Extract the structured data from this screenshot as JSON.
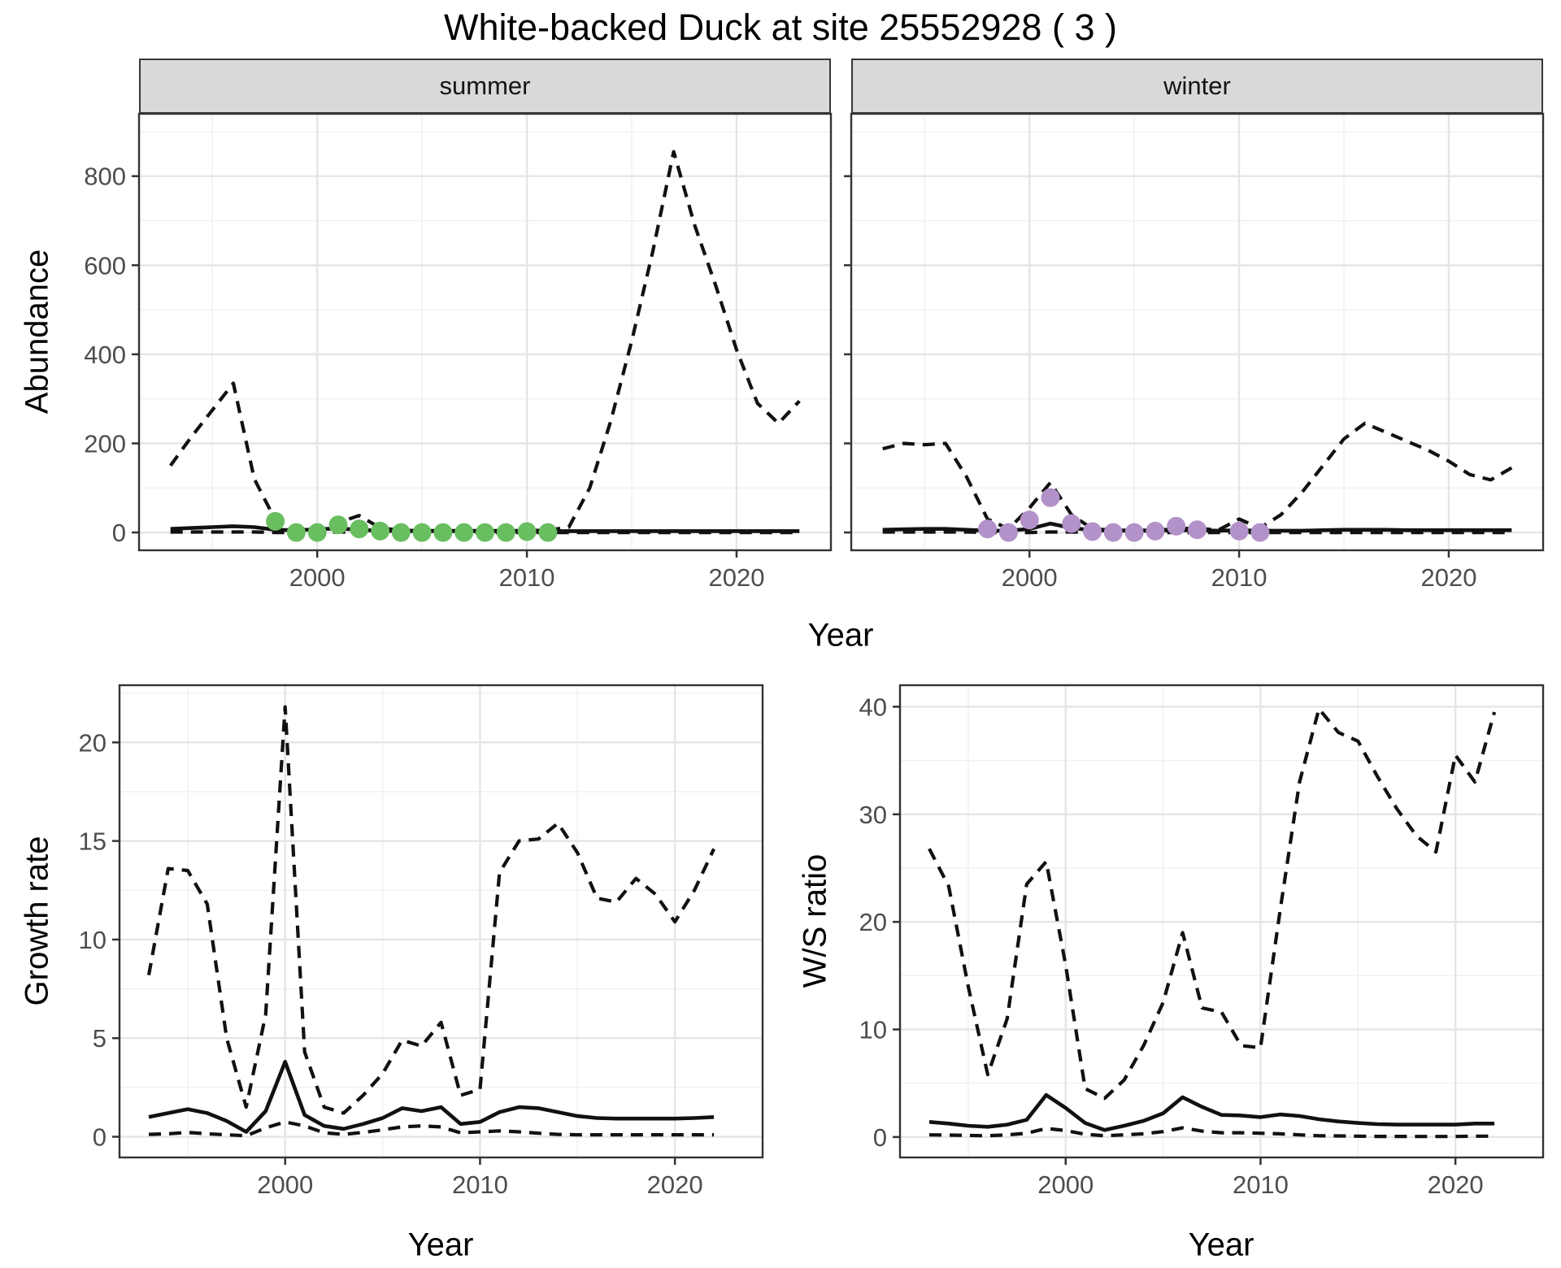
{
  "title": "White-backed Duck at site 25552928 ( 3 )",
  "facets": [
    {
      "label": "summer"
    },
    {
      "label": "winter"
    }
  ],
  "axis_titles": {
    "abundance": "Abundance",
    "year_top": "Year",
    "growth": "Growth rate",
    "ws": "W/S ratio",
    "year_growth": "Year",
    "year_ws": "Year"
  },
  "colors": {
    "summer_dot": "#69be5f",
    "winter_dot": "#b292c9",
    "line": "#111111",
    "strip_bg": "#d9d9d9",
    "panel_border": "#333333",
    "grid_major": "#e5e5e5",
    "grid_minor": "#f0f0f0",
    "tick_text": "#4d4d4d"
  },
  "chart_data": [
    {
      "type": "line",
      "facet": "summer",
      "xlabel": "Year",
      "ylabel": "Abundance",
      "xlim": [
        1991.5,
        2024.5
      ],
      "ylim": [
        -40,
        940
      ],
      "xticks": [
        2000,
        2010,
        2020
      ],
      "yticks": [
        0,
        200,
        400,
        600,
        800
      ],
      "xticks_minor": [
        1995,
        2005,
        2015
      ],
      "yticks_minor": [
        100,
        300,
        500,
        700,
        900
      ],
      "x": [
        1993,
        1994,
        1995,
        1996,
        1997,
        1998,
        1999,
        2000,
        2001,
        2002,
        2003,
        2004,
        2005,
        2006,
        2007,
        2008,
        2009,
        2010,
        2011,
        2012,
        2013,
        2014,
        2015,
        2016,
        2017,
        2018,
        2019,
        2020,
        2021,
        2022,
        2023
      ],
      "series": [
        {
          "name": "ci_upper",
          "style": "dashed",
          "values": [
            150,
            215,
            275,
            335,
            120,
            28,
            6,
            8,
            22,
            38,
            10,
            5,
            4,
            4,
            4,
            4,
            4,
            4,
            5,
            12,
            100,
            250,
            430,
            630,
            855,
            690,
            555,
            410,
            290,
            245,
            295
          ]
        },
        {
          "name": "mean",
          "style": "solid",
          "values": [
            8,
            10,
            12,
            14,
            12,
            6,
            5,
            7,
            9,
            6,
            4,
            3,
            3,
            3,
            3,
            3,
            3,
            3,
            3,
            3,
            3,
            3,
            3,
            3,
            3,
            3,
            3,
            3,
            3,
            3,
            3
          ]
        },
        {
          "name": "ci_lower",
          "style": "dashed",
          "values": [
            1,
            1,
            1,
            1,
            1,
            0,
            0,
            0,
            1,
            1,
            0,
            0,
            0,
            0,
            0,
            0,
            0,
            0,
            0,
            0,
            0,
            0,
            0,
            0,
            0,
            0,
            0,
            0,
            0,
            0,
            0
          ]
        }
      ],
      "points": {
        "name": "observed-counts-summer",
        "color": "#69be5f",
        "x": [
          1998,
          1999,
          2000,
          2001,
          2002,
          2003,
          2004,
          2005,
          2006,
          2007,
          2008,
          2009,
          2010,
          2011
        ],
        "y": [
          25,
          0,
          0,
          17,
          8,
          3,
          0,
          0,
          0,
          0,
          0,
          0,
          2,
          0
        ]
      }
    },
    {
      "type": "line",
      "facet": "winter",
      "xlabel": "Year",
      "ylabel": "Abundance",
      "xlim": [
        1991.5,
        2024.5
      ],
      "ylim": [
        -40,
        940
      ],
      "xticks": [
        2000,
        2010,
        2020
      ],
      "yticks": [
        0,
        200,
        400,
        600,
        800
      ],
      "xticks_minor": [
        1995,
        2005,
        2015
      ],
      "yticks_minor": [
        100,
        300,
        500,
        700,
        900
      ],
      "x": [
        1993,
        1994,
        1995,
        1996,
        1997,
        1998,
        1999,
        2000,
        2001,
        2002,
        2003,
        2004,
        2005,
        2006,
        2007,
        2008,
        2009,
        2010,
        2011,
        2012,
        2013,
        2014,
        2015,
        2016,
        2017,
        2018,
        2019,
        2020,
        2021,
        2022,
        2023
      ],
      "series": [
        {
          "name": "ci_upper",
          "style": "dashed",
          "values": [
            188,
            200,
            197,
            200,
            125,
            30,
            8,
            55,
            112,
            40,
            8,
            5,
            5,
            5,
            8,
            10,
            5,
            30,
            10,
            40,
            90,
            150,
            210,
            245,
            225,
            205,
            185,
            160,
            130,
            118,
            145
          ]
        },
        {
          "name": "mean",
          "style": "solid",
          "values": [
            6,
            7,
            8,
            8,
            6,
            4,
            4,
            8,
            20,
            10,
            5,
            4,
            4,
            4,
            5,
            5,
            4,
            5,
            4,
            4,
            4,
            5,
            6,
            6,
            6,
            5,
            5,
            5,
            5,
            5,
            5
          ]
        },
        {
          "name": "ci_lower",
          "style": "dashed",
          "values": [
            1,
            1,
            1,
            1,
            1,
            0,
            0,
            0,
            1,
            1,
            0,
            0,
            0,
            0,
            0,
            0,
            0,
            0,
            0,
            0,
            0,
            0,
            0,
            0,
            0,
            0,
            0,
            0,
            0,
            0,
            0
          ]
        }
      ],
      "points": {
        "name": "observed-counts-winter",
        "color": "#b292c9",
        "x": [
          1998,
          1999,
          2000,
          2001,
          2002,
          2003,
          2004,
          2005,
          2006,
          2007,
          2008,
          2010,
          2011
        ],
        "y": [
          8,
          0,
          28,
          78,
          20,
          2,
          0,
          0,
          3,
          14,
          6,
          3,
          0
        ]
      }
    },
    {
      "type": "line",
      "facet": null,
      "xlabel": "Year",
      "ylabel": "Growth rate",
      "xlim": [
        1991.5,
        2024.5
      ],
      "ylim": [
        -1.05,
        22.9
      ],
      "xticks": [
        2000,
        2010,
        2020
      ],
      "yticks": [
        0,
        5,
        10,
        15,
        20
      ],
      "xticks_minor": [
        1995,
        2005,
        2015
      ],
      "yticks_minor": [
        2.5,
        7.5,
        12.5,
        17.5,
        22.5
      ],
      "x": [
        1993,
        1994,
        1995,
        1996,
        1997,
        1998,
        1999,
        2000,
        2001,
        2002,
        2003,
        2004,
        2005,
        2006,
        2007,
        2008,
        2009,
        2010,
        2011,
        2012,
        2013,
        2014,
        2015,
        2016,
        2017,
        2018,
        2019,
        2020,
        2021,
        2022
      ],
      "series": [
        {
          "name": "ci_upper",
          "style": "dashed",
          "values": [
            8.2,
            13.6,
            13.5,
            11.8,
            5.0,
            1.5,
            6.2,
            21.8,
            4.3,
            1.5,
            1.2,
            2.1,
            3.2,
            4.9,
            4.6,
            5.8,
            2.1,
            2.4,
            13.4,
            15.0,
            15.1,
            15.9,
            14.4,
            12.1,
            11.9,
            13.1,
            12.3,
            10.9,
            12.5,
            14.6
          ]
        },
        {
          "name": "mean",
          "style": "solid",
          "values": [
            1.0,
            1.2,
            1.4,
            1.2,
            0.8,
            0.25,
            1.3,
            3.8,
            1.1,
            0.55,
            0.4,
            0.65,
            0.95,
            1.45,
            1.3,
            1.5,
            0.65,
            0.75,
            1.25,
            1.5,
            1.45,
            1.25,
            1.05,
            0.95,
            0.92,
            0.92,
            0.92,
            0.92,
            0.95,
            1.0
          ]
        },
        {
          "name": "ci_lower",
          "style": "dashed",
          "values": [
            0.12,
            0.15,
            0.22,
            0.15,
            0.1,
            0.05,
            0.45,
            0.75,
            0.55,
            0.2,
            0.12,
            0.22,
            0.35,
            0.5,
            0.55,
            0.5,
            0.2,
            0.25,
            0.3,
            0.25,
            0.18,
            0.12,
            0.1,
            0.1,
            0.1,
            0.1,
            0.1,
            0.1,
            0.1,
            0.1
          ]
        }
      ],
      "points": null
    },
    {
      "type": "line",
      "facet": null,
      "xlabel": "Year",
      "ylabel": "W/S ratio",
      "xlim": [
        1991.5,
        2024.5
      ],
      "ylim": [
        -1.9,
        42.0
      ],
      "xticks": [
        2000,
        2010,
        2020
      ],
      "yticks": [
        0,
        10,
        20,
        30,
        40
      ],
      "xticks_minor": [
        1995,
        2005,
        2015
      ],
      "yticks_minor": [
        5,
        15,
        25,
        35
      ],
      "x": [
        1993,
        1994,
        1995,
        1996,
        1997,
        1998,
        1999,
        2000,
        2001,
        2002,
        2003,
        2004,
        2005,
        2006,
        2007,
        2008,
        2009,
        2010,
        2011,
        2012,
        2013,
        2014,
        2015,
        2016,
        2017,
        2018,
        2019,
        2020,
        2021,
        2022
      ],
      "series": [
        {
          "name": "ci_upper",
          "style": "dashed",
          "values": [
            26.8,
            23.3,
            14.0,
            5.8,
            11.0,
            23.5,
            25.6,
            16.0,
            4.5,
            3.6,
            5.3,
            8.5,
            12.5,
            19.0,
            12.0,
            11.6,
            8.5,
            8.3,
            21.0,
            33.0,
            39.8,
            37.6,
            36.8,
            33.5,
            30.5,
            28.0,
            26.5,
            35.5,
            33.0,
            39.5
          ]
        },
        {
          "name": "mean",
          "style": "solid",
          "values": [
            1.4,
            1.25,
            1.05,
            0.95,
            1.15,
            1.6,
            3.9,
            2.7,
            1.3,
            0.65,
            1.05,
            1.5,
            2.2,
            3.7,
            2.8,
            2.05,
            2.0,
            1.85,
            2.1,
            1.95,
            1.65,
            1.45,
            1.3,
            1.2,
            1.15,
            1.15,
            1.15,
            1.15,
            1.25,
            1.25
          ]
        },
        {
          "name": "ci_lower",
          "style": "dashed",
          "values": [
            0.2,
            0.18,
            0.15,
            0.12,
            0.2,
            0.35,
            0.8,
            0.6,
            0.25,
            0.12,
            0.2,
            0.3,
            0.5,
            0.85,
            0.55,
            0.4,
            0.4,
            0.35,
            0.3,
            0.2,
            0.12,
            0.1,
            0.08,
            0.06,
            0.06,
            0.05,
            0.05,
            0.05,
            0.08,
            0.08
          ]
        }
      ],
      "points": null
    }
  ]
}
